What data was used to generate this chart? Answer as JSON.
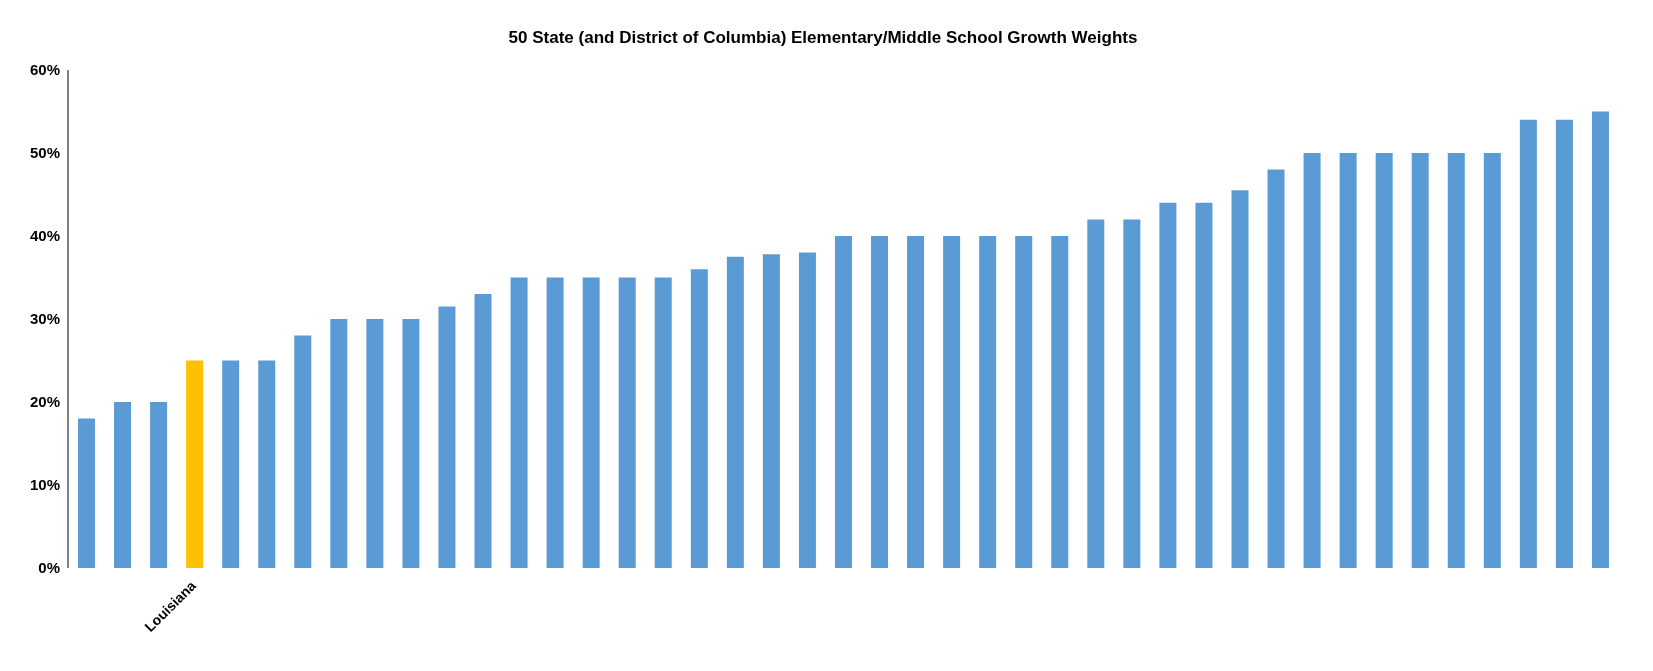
{
  "chart_data": {
    "type": "bar",
    "title": "50 State (and District of Columbia) Elementary/Middle School Growth Weights",
    "categories": [
      null,
      null,
      null,
      "Louisiana",
      null,
      null,
      null,
      null,
      null,
      null,
      null,
      null,
      null,
      null,
      null,
      null,
      null,
      null,
      null,
      null,
      null,
      null,
      null,
      null,
      null,
      null,
      null,
      null,
      null,
      null,
      null,
      null,
      null,
      null,
      null,
      null,
      null,
      null,
      null,
      null,
      null,
      null,
      null
    ],
    "values": [
      18,
      20,
      20,
      25,
      25,
      25,
      28,
      30,
      30,
      30,
      31.5,
      33,
      35,
      35,
      35,
      35,
      35,
      36,
      37.5,
      37.8,
      38,
      40,
      40,
      40,
      40,
      40,
      40,
      40,
      42,
      42,
      44,
      44,
      45.5,
      48,
      50,
      50,
      50,
      50,
      50,
      50,
      54,
      54,
      55
    ],
    "colors": [
      "#5b9bd5",
      "#5b9bd5",
      "#5b9bd5",
      "#ffc000",
      "#5b9bd5",
      "#5b9bd5",
      "#5b9bd5",
      "#5b9bd5",
      "#5b9bd5",
      "#5b9bd5",
      "#5b9bd5",
      "#5b9bd5",
      "#5b9bd5",
      "#5b9bd5",
      "#5b9bd5",
      "#5b9bd5",
      "#5b9bd5",
      "#5b9bd5",
      "#5b9bd5",
      "#5b9bd5",
      "#5b9bd5",
      "#5b9bd5",
      "#5b9bd5",
      "#5b9bd5",
      "#5b9bd5",
      "#5b9bd5",
      "#5b9bd5",
      "#5b9bd5",
      "#5b9bd5",
      "#5b9bd5",
      "#5b9bd5",
      "#5b9bd5",
      "#5b9bd5",
      "#5b9bd5",
      "#5b9bd5",
      "#5b9bd5",
      "#5b9bd5",
      "#5b9bd5",
      "#5b9bd5",
      "#5b9bd5",
      "#5b9bd5",
      "#5b9bd5",
      "#5b9bd5"
    ],
    "ylim": [
      0,
      60
    ],
    "yticks": [
      {
        "value": 0,
        "label": "0%"
      },
      {
        "value": 10,
        "label": "10%"
      },
      {
        "value": 20,
        "label": "20%"
      },
      {
        "value": 30,
        "label": "30%"
      },
      {
        "value": 40,
        "label": "40%"
      },
      {
        "value": 50,
        "label": "50%"
      },
      {
        "value": 60,
        "label": "60%"
      }
    ],
    "grid": false
  }
}
